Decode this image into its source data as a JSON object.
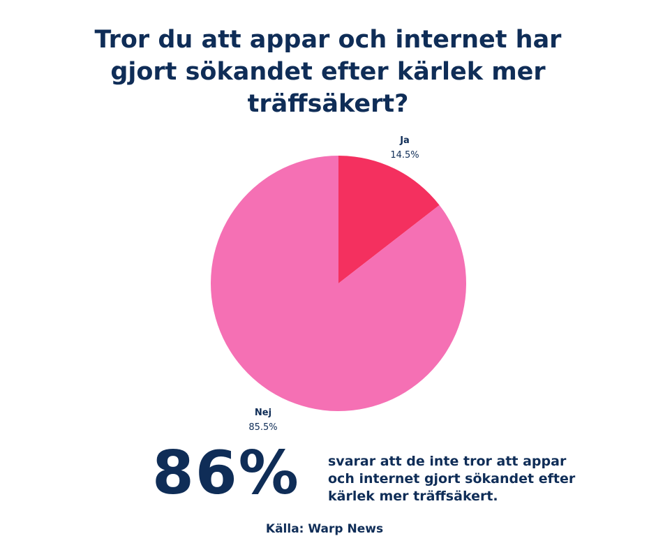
{
  "title_lines": [
    "Tror du att appar och internet har",
    "gjort sökandet efter kärlek mer",
    "träffsäkert?"
  ],
  "chart_data": {
    "type": "pie",
    "title": "Tror du att appar och internet har gjort sökandet efter kärlek mer träffsäkert?",
    "slices": [
      {
        "label": "Ja",
        "value": 14.5,
        "display": "14.5%",
        "color": "#f4305f"
      },
      {
        "label": "Nej",
        "value": 85.5,
        "display": "85.5%",
        "color": "#f570b4"
      }
    ],
    "start": "12 o'clock",
    "direction": "clockwise"
  },
  "stat": {
    "value": "86%",
    "description_lines": [
      "svarar att de inte tror att appar",
      "och internet gjort sökandet efter",
      "kärlek mer träffsäkert."
    ]
  },
  "source": "Källa: Warp News",
  "colors": {
    "text": "#0f2d57",
    "background": "#ffffff"
  }
}
